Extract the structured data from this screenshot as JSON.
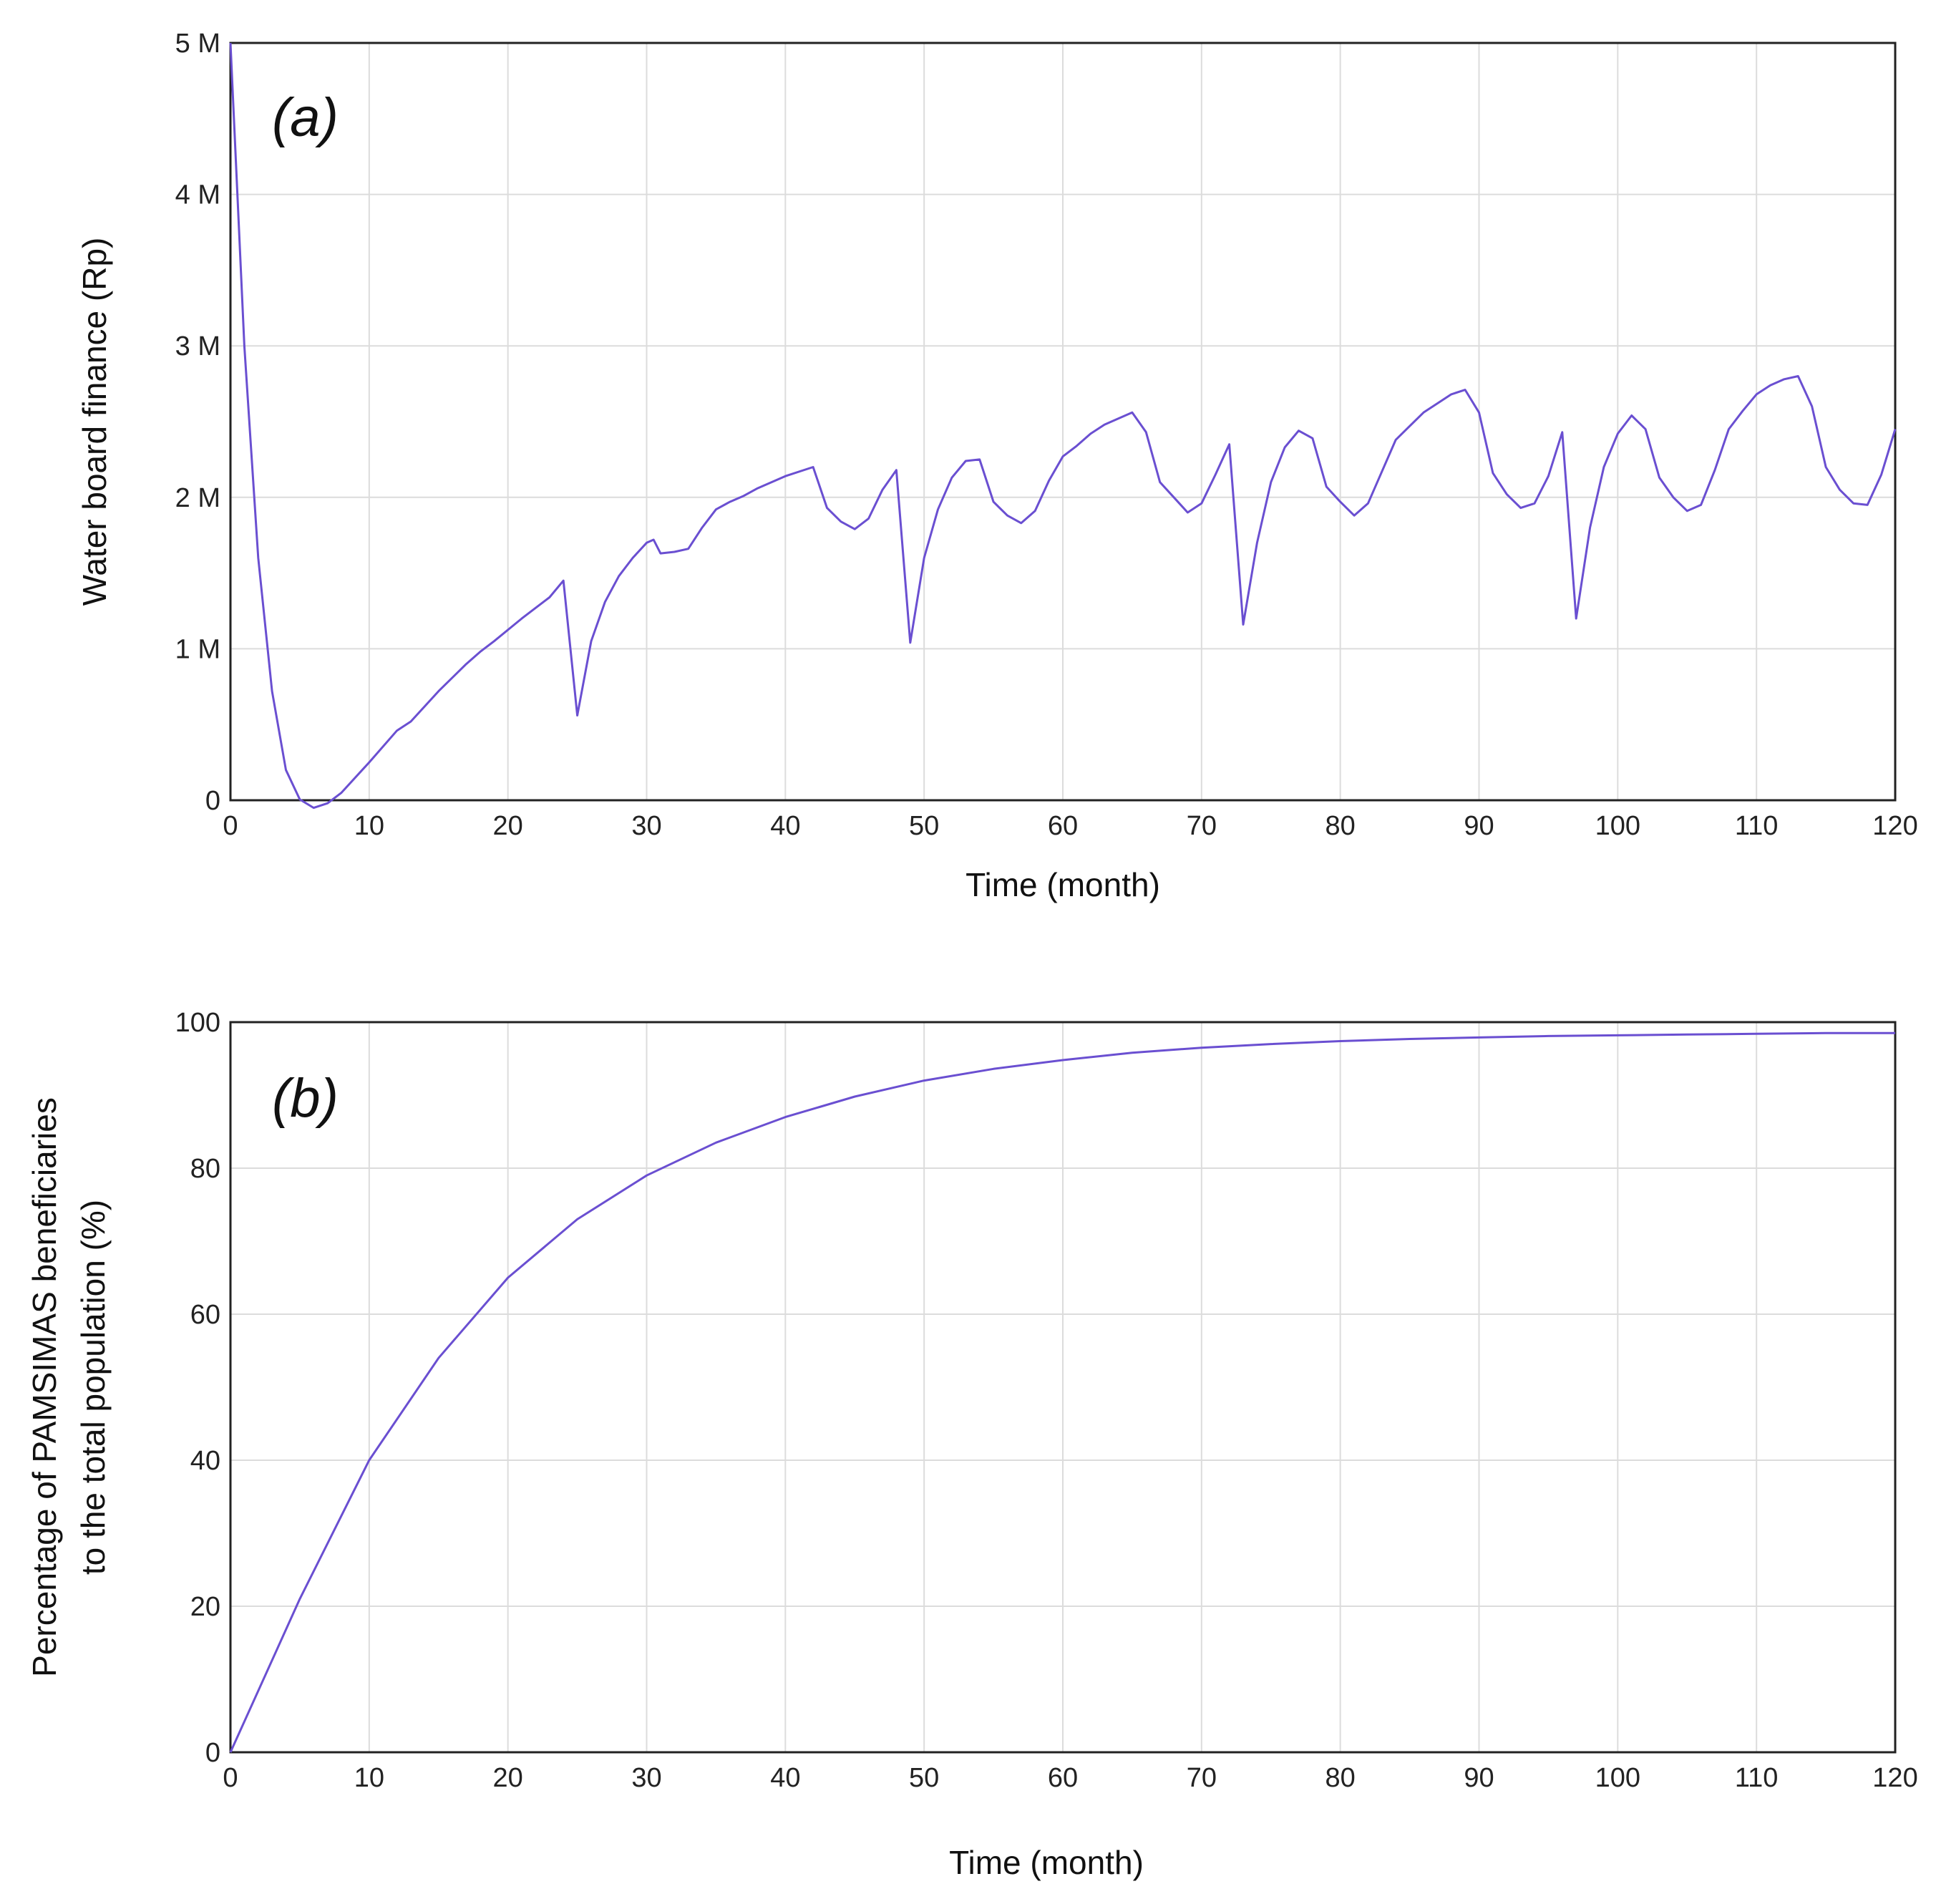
{
  "chart_data": [
    {
      "type": "line",
      "panel_label": "(a)",
      "title": "",
      "xlabel": "Time (month)",
      "ylabel": "Water board finance (Rp)",
      "xlim": [
        0,
        120
      ],
      "ylim": [
        0,
        5000000
      ],
      "x_ticks": [
        0,
        10,
        20,
        30,
        40,
        50,
        60,
        70,
        80,
        90,
        100,
        110,
        120
      ],
      "y_ticks": [
        0,
        1000000,
        2000000,
        3000000,
        4000000,
        5000000
      ],
      "y_tick_labels": [
        "0",
        "1 M",
        "2 M",
        "3 M",
        "4 M",
        "5 M"
      ],
      "grid": true,
      "series": [
        {
          "name": "Water board finance",
          "color": "#6a4fd1",
          "x": [
            0,
            1,
            2,
            3,
            4,
            5,
            6,
            7,
            8,
            10,
            12,
            13,
            15,
            17,
            18,
            19,
            21,
            23,
            24,
            25,
            26,
            27,
            28,
            29,
            30,
            30.5,
            31,
            32,
            33,
            34,
            35,
            36,
            37,
            38,
            40,
            42,
            43,
            44,
            45,
            46,
            47,
            48,
            49,
            50,
            51,
            52,
            53,
            54,
            55,
            56,
            57,
            58,
            59,
            60,
            61,
            62,
            63,
            64,
            65,
            66,
            67,
            68,
            69,
            70,
            71,
            72,
            73,
            74,
            75,
            76,
            77,
            78,
            79,
            80,
            81,
            82,
            83,
            84,
            85,
            86,
            87,
            88,
            89,
            90,
            91,
            92,
            93,
            94,
            95,
            96,
            97,
            98,
            99,
            100,
            101,
            102,
            103,
            104,
            105,
            106,
            107,
            108,
            109,
            110,
            111,
            112,
            113,
            114,
            115,
            116,
            117,
            118,
            119,
            120
          ],
          "values": [
            5000000,
            3000000,
            1600000,
            720000,
            200000,
            5000,
            -50000,
            -20000,
            50000,
            250000,
            460000,
            520000,
            720000,
            900000,
            980000,
            1050000,
            1200000,
            1340000,
            1450000,
            560000,
            1050000,
            1310000,
            1480000,
            1600000,
            1700000,
            1720000,
            1630000,
            1640000,
            1660000,
            1800000,
            1920000,
            1970000,
            2010000,
            2060000,
            2140000,
            2200000,
            1930000,
            1840000,
            1790000,
            1860000,
            2050000,
            2180000,
            1040000,
            1600000,
            1920000,
            2130000,
            2240000,
            2250000,
            1970000,
            1880000,
            1830000,
            1910000,
            2110000,
            2270000,
            2340000,
            2420000,
            2480000,
            2520000,
            2560000,
            2430000,
            2100000,
            2000000,
            1900000,
            1960000,
            2150000,
            2350000,
            1160000,
            1700000,
            2100000,
            2330000,
            2440000,
            2390000,
            2070000,
            1970000,
            1880000,
            1960000,
            2170000,
            2380000,
            2470000,
            2560000,
            2620000,
            2680000,
            2710000,
            2560000,
            2160000,
            2020000,
            1930000,
            1960000,
            2140000,
            2430000,
            1200000,
            1800000,
            2200000,
            2420000,
            2540000,
            2450000,
            2130000,
            2000000,
            1910000,
            1950000,
            2180000,
            2450000,
            2570000,
            2680000,
            2740000,
            2780000,
            2800000,
            2600000,
            2200000,
            2050000,
            1960000,
            1950000,
            2150000,
            2450000
          ]
        }
      ]
    },
    {
      "type": "line",
      "panel_label": "(b)",
      "title": "",
      "xlabel": "Time (month)",
      "ylabel": "Percentage of PAMSIMAS beneficiaries to the total population (%)",
      "ylabel_lines": [
        "Percentage of PAMSIMAS beneficiaries",
        "to the total population (%)"
      ],
      "xlim": [
        0,
        120
      ],
      "ylim": [
        0,
        100
      ],
      "x_ticks": [
        0,
        10,
        20,
        30,
        40,
        50,
        60,
        70,
        80,
        90,
        100,
        110,
        120
      ],
      "y_ticks": [
        0,
        20,
        40,
        60,
        80,
        100
      ],
      "y_tick_labels": [
        "0",
        "20",
        "40",
        "60",
        "80",
        "100"
      ],
      "grid": true,
      "series": [
        {
          "name": "PAMSIMAS beneficiaries",
          "color": "#6a4fd1",
          "x": [
            0,
            5,
            10,
            15,
            20,
            25,
            30,
            35,
            40,
            45,
            50,
            55,
            60,
            65,
            70,
            75,
            80,
            85,
            90,
            95,
            100,
            105,
            110,
            115,
            120
          ],
          "values": [
            0,
            21,
            40,
            54,
            65,
            73,
            79,
            83.5,
            87,
            89.8,
            92,
            93.6,
            94.8,
            95.8,
            96.5,
            97,
            97.4,
            97.7,
            97.9,
            98.1,
            98.2,
            98.3,
            98.4,
            98.5,
            98.5
          ]
        }
      ]
    }
  ]
}
